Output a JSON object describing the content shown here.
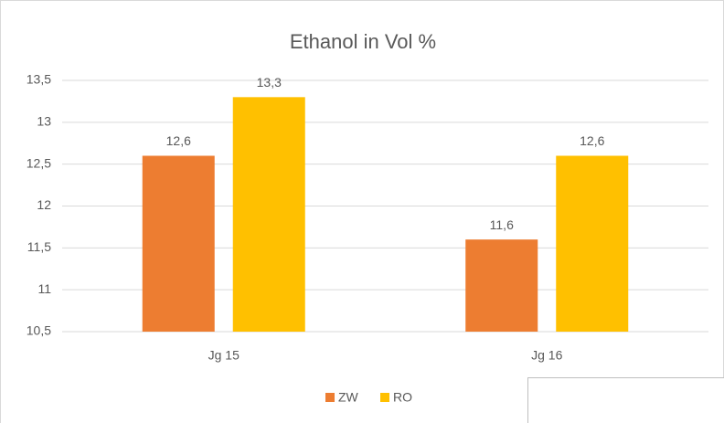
{
  "chart_data": {
    "type": "bar",
    "title": "Ethanol in Vol %",
    "categories": [
      "Jg 15",
      "Jg 16"
    ],
    "series": [
      {
        "name": "ZW",
        "color": "#ed7d31",
        "values": [
          12.6,
          11.6
        ],
        "value_labels": [
          "12,6",
          "11,6"
        ]
      },
      {
        "name": "RO",
        "color": "#ffc000",
        "values": [
          13.3,
          12.6
        ],
        "value_labels": [
          "13,3",
          "12,6"
        ]
      }
    ],
    "ylim": [
      10.5,
      13.5
    ],
    "yticks": [
      {
        "value": 10.5,
        "label": "10,5"
      },
      11,
      {
        "value": 11.5,
        "label": "11,5"
      },
      12,
      {
        "value": 12.5,
        "label": "12,5"
      },
      13,
      {
        "value": 13.5,
        "label": "13,5"
      }
    ],
    "grid": true,
    "legend": "bottom"
  }
}
